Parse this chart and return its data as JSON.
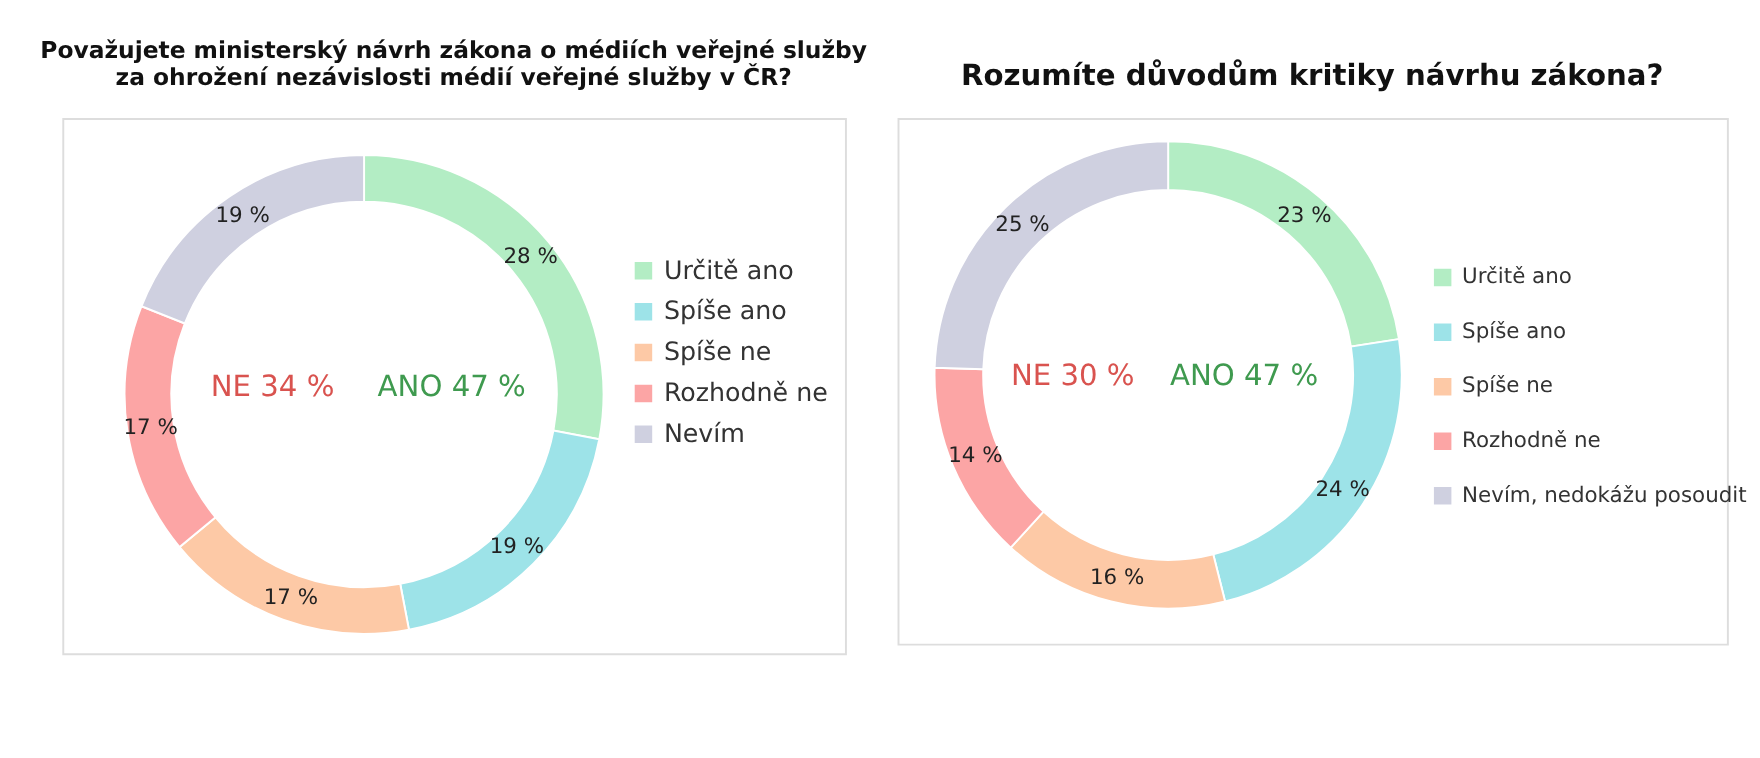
{
  "chart_data": [
    {
      "type": "donut",
      "title": "Považujete ministerský návrh zákona o médiích veřejné služby\nza ohrožení nezávislosti médií veřejné služby v ČR?",
      "categories": [
        "Určitě ano",
        "Spíše ano",
        "Spíše ne",
        "Rozhodně ne",
        "Nevím"
      ],
      "values": [
        28,
        19,
        17,
        17,
        19
      ],
      "value_labels": [
        "28 %",
        "19 %",
        "17 %",
        "17 %",
        "19 %"
      ],
      "colors": [
        "#b3edc4",
        "#9de3e8",
        "#fdc9a6",
        "#fca5a5",
        "#cfd0e0"
      ],
      "legend": "right",
      "annotations": [
        "NE 34 %",
        "ANO 47 %"
      ]
    },
    {
      "type": "donut",
      "title": "Rozumíte důvodům kritiky návrhu zákona?",
      "categories": [
        "Určitě ano",
        "Spíše ano",
        "Spíše ne",
        "Rozhodně ne",
        "Nevím, nedokážu posoudit"
      ],
      "values": [
        23,
        24,
        16,
        14,
        25
      ],
      "value_labels": [
        "23 %",
        "24 %",
        "16 %",
        "14 %",
        "25 %"
      ],
      "colors": [
        "#b3edc4",
        "#9de3e8",
        "#fdc9a6",
        "#fca5a5",
        "#cfd0e0"
      ],
      "legend": "right",
      "annotations": [
        "NE 30 %",
        "ANO 47 %"
      ]
    }
  ]
}
